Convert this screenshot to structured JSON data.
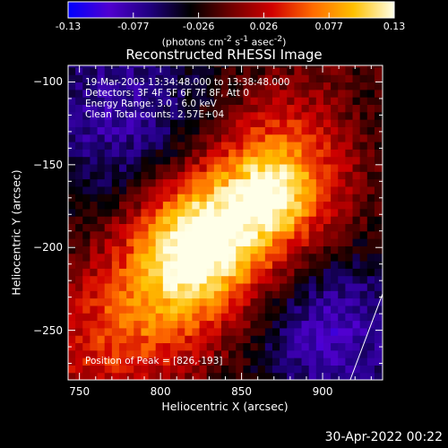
{
  "colorbar": {
    "ticks": [
      "-0.13",
      "-0.077",
      "-0.026",
      "0.026",
      "0.077",
      "0.13"
    ],
    "units_prefix": "(photons cm",
    "units_sup1": "-2",
    "units_mid": " s",
    "units_sup2": "-1",
    "units_mid2": " asec",
    "units_sup3": "-2",
    "units_suffix": ")",
    "stops": [
      "#0000ff",
      "#5000d0",
      "#200080",
      "#000000",
      "#700000",
      "#d00000",
      "#ff6a00",
      "#ffc000",
      "#ffffe8"
    ]
  },
  "header": {
    "lines": [
      "19-Mar-2003 13:34:48.000 to 13:38:48.000",
      "Detectors: 3F 4F 5F 6F 7F 8F, Att 0",
      "Energy Range: 3.0 - 6.0 keV",
      "Clean     Total counts: 2.57E+04"
    ],
    "peak": "Position of Peak = [826,-193]"
  },
  "footer": {
    "date": "30-Apr-2022 00:22"
  },
  "chart_data": {
    "type": "heatmap",
    "title": "Reconstructed RHESSI Image",
    "xlabel": "Heliocentric X (arcsec)",
    "ylabel": "Heliocentric Y (arcsec)",
    "xlim": [
      743,
      937
    ],
    "ylim": [
      -280,
      -90
    ],
    "xticks": [
      750,
      800,
      850,
      900
    ],
    "yticks": [
      -100,
      -150,
      -200,
      -250
    ],
    "value_range": [
      -0.13,
      0.13
    ],
    "peak": [
      826,
      -193
    ],
    "limb_line": [
      [
        917,
        -280
      ],
      [
        937,
        -228
      ]
    ]
  }
}
